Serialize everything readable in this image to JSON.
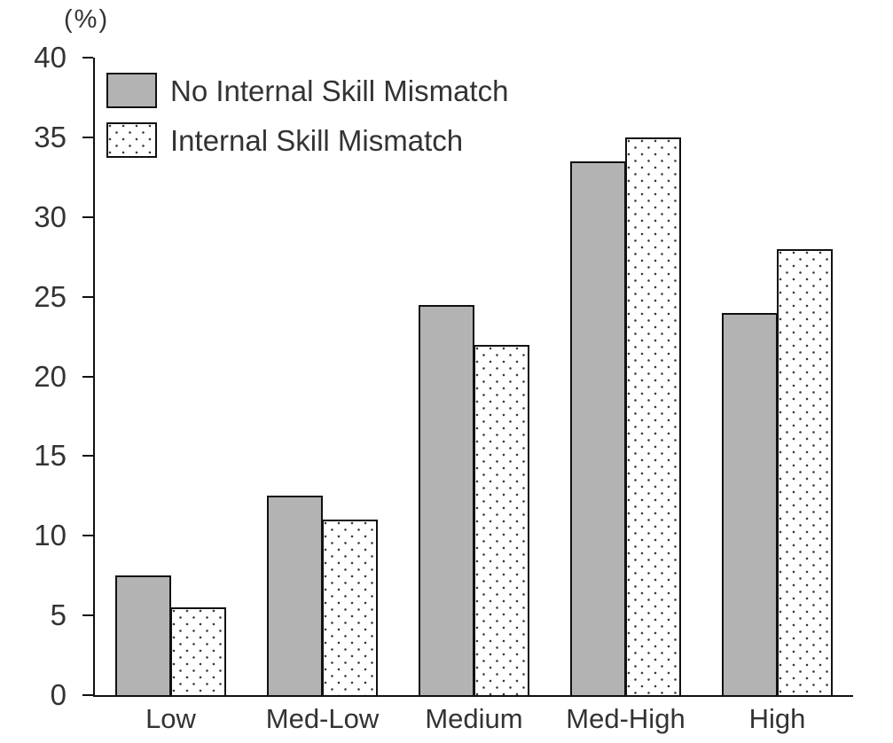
{
  "chart_data": {
    "type": "bar",
    "title": "",
    "unit_label": "(%)",
    "categories": [
      "Low",
      "Med-Low",
      "Medium",
      "Med-High",
      "High"
    ],
    "series": [
      {
        "name": "No Internal Skill Mismatch",
        "style": "solid-gray",
        "values": [
          7.5,
          12.5,
          24.5,
          33.5,
          24
        ]
      },
      {
        "name": "Internal Skill Mismatch",
        "style": "dotted-pattern",
        "values": [
          5.5,
          11,
          22,
          35,
          28
        ]
      }
    ],
    "ylim": [
      0,
      40
    ],
    "ytick_step": 5,
    "ytick_labels": [
      "0",
      "5",
      "10",
      "15",
      "20",
      "25",
      "30",
      "35",
      "40"
    ],
    "grid": false,
    "legend_position": "top-left",
    "colors": {
      "bar_fill": "#b3b3b3",
      "bar_border": "#111111",
      "dot_color": "#3a3a3a",
      "axis": "#111111",
      "text": "#333333"
    }
  }
}
